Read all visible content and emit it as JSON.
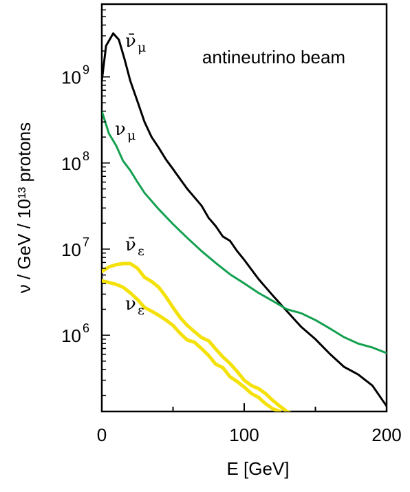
{
  "chart_data": {
    "type": "line",
    "xlabel": "E [GeV]",
    "ylabel": "ν / GeV / 10¹³ protons",
    "annotation": "antineutrino beam",
    "xlim": [
      0,
      200
    ],
    "ylim": [
      130000,
      7000000000
    ],
    "yscale": "log",
    "grid": false,
    "x_ticks": [
      {
        "value": 0,
        "label": "0"
      },
      {
        "value": 100,
        "label": "100"
      },
      {
        "value": 200,
        "label": "200"
      }
    ],
    "x_minor_ticks": [
      50,
      150
    ],
    "y_ticks": [
      {
        "value": 1000000,
        "base": "10",
        "exp": "6"
      },
      {
        "value": 10000000,
        "base": "10",
        "exp": "7"
      },
      {
        "value": 100000000,
        "base": "10",
        "exp": "8"
      },
      {
        "value": 1000000000,
        "base": "10",
        "exp": "9"
      }
    ],
    "series": [
      {
        "name": "ν̄μ",
        "label_main": "ν̄",
        "label_sub": "μ",
        "color": "#000000",
        "x": [
          0,
          3,
          8,
          12,
          16,
          20,
          25,
          30,
          35,
          40,
          45,
          50,
          55,
          60,
          65,
          70,
          75,
          80,
          85,
          90,
          95,
          100,
          110,
          120,
          130,
          140,
          150,
          160,
          170,
          180,
          190,
          200
        ],
        "y": [
          900000000,
          2300000000,
          3200000000,
          2700000000,
          1600000000,
          900000000,
          520000000,
          300000000,
          200000000,
          150000000,
          110000000,
          85000000,
          65000000,
          50000000,
          40000000,
          32000000,
          23000000,
          18500000,
          14000000,
          12500000,
          9500000,
          7500000,
          4500000,
          2900000,
          1900000,
          1250000,
          900000,
          610000,
          430000,
          350000,
          260000,
          150000
        ]
      },
      {
        "name": "νμ",
        "label_main": "ν",
        "label_sub": "μ",
        "color": "#14a050",
        "x": [
          0,
          5,
          10,
          15,
          20,
          25,
          30,
          40,
          50,
          60,
          70,
          80,
          90,
          100,
          110,
          120,
          130,
          140,
          150,
          160,
          170,
          180,
          190,
          200
        ],
        "y": [
          400000000,
          220000000,
          160000000,
          105000000,
          82000000,
          60000000,
          45000000,
          29000000,
          19500000,
          13500000,
          9500000,
          6900000,
          5100000,
          4000000,
          3100000,
          2500000,
          2000000,
          1800000,
          1500000,
          1200000,
          950000,
          800000,
          720000,
          620000
        ]
      },
      {
        "name": "ν̄ε",
        "label_main": "ν̄",
        "label_sub": "ε",
        "color": "#f5e10a",
        "x": [
          0,
          5,
          10,
          15,
          20,
          25,
          30,
          35,
          40,
          45,
          50,
          55,
          60,
          65,
          70,
          75,
          80,
          85,
          90,
          95,
          100,
          105,
          110,
          115,
          120,
          125,
          130,
          135
        ],
        "y": [
          5500000,
          6200000,
          6600000,
          6800000,
          6800000,
          6000000,
          4700000,
          4200000,
          3600000,
          2800000,
          2100000,
          1600000,
          1300000,
          1100000,
          940000,
          860000,
          690000,
          560000,
          470000,
          380000,
          300000,
          260000,
          240000,
          210000,
          175000,
          150000,
          130000,
          120000
        ]
      },
      {
        "name": "νε",
        "label_main": "ν",
        "label_sub": "ε",
        "color": "#f5e10a",
        "x": [
          0,
          5,
          10,
          15,
          20,
          25,
          30,
          35,
          40,
          45,
          50,
          55,
          60,
          65,
          70,
          75,
          80,
          85,
          90,
          95,
          100,
          105,
          110,
          115,
          120,
          125
        ],
        "y": [
          4300000,
          4100000,
          3900000,
          3600000,
          3100000,
          2600000,
          2100000,
          1900000,
          1700000,
          1500000,
          1300000,
          1050000,
          880000,
          830000,
          700000,
          580000,
          460000,
          420000,
          330000,
          290000,
          250000,
          210000,
          190000,
          160000,
          140000,
          130000
        ]
      }
    ]
  }
}
